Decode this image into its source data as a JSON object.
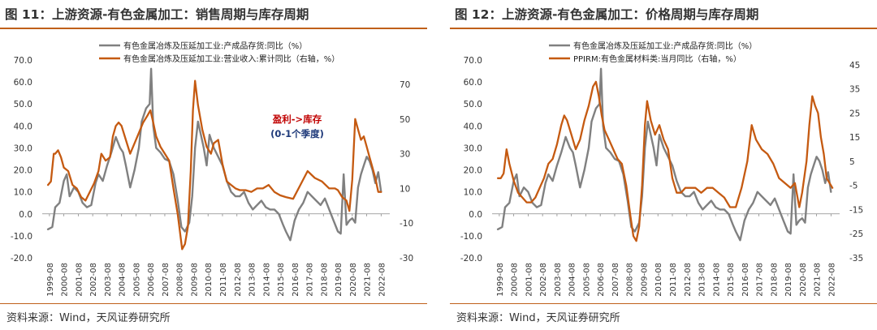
{
  "charts": [
    {
      "figure_title": "图 11：上游资源-有色金属加工：销售周期与库存周期",
      "source": "资料来源：Wind，天风证券研究所",
      "chart_data": {
        "type": "line",
        "x_ticks": [
          "1999-08",
          "2000-08",
          "2001-08",
          "2002-08",
          "2003-08",
          "2004-08",
          "2005-08",
          "2006-08",
          "2007-08",
          "2008-08",
          "2009-08",
          "2010-08",
          "2011-08",
          "2012-08",
          "2013-08",
          "2014-08",
          "2015-08",
          "2016-08",
          "2017-08",
          "2018-08",
          "2019-08",
          "2020-08",
          "2021-08",
          "2022-08"
        ],
        "left_axis": {
          "ylim": [
            -20,
            70
          ],
          "ticks": [
            "-20.0",
            "-10.0",
            "0.0",
            "10.0",
            "20.0",
            "30.0",
            "40.0",
            "50.0",
            "60.0",
            "70.0"
          ]
        },
        "right_axis": {
          "ylim": [
            -30,
            84
          ],
          "ticks": [
            "-30",
            "-10",
            "10",
            "30",
            "50",
            "70"
          ]
        },
        "legend_position": "top-center",
        "annotations": [
          {
            "text": "盈利->库存",
            "color": "#c00000"
          },
          {
            "text": "(0-1个季度)",
            "color": "#1f3a7a"
          }
        ],
        "series": [
          {
            "name": "有色金属冶炼及压延加工业:产成品存货:同比（%）",
            "axis": "left",
            "color": "#808080",
            "x": [
              1999.5,
              1999.8,
              2000.0,
              2000.3,
              2000.6,
              2000.8,
              2001.0,
              2001.3,
              2001.6,
              2001.9,
              2002.2,
              2002.5,
              2002.8,
              2003.0,
              2003.3,
              2003.6,
              2003.9,
              2004.2,
              2004.5,
              2004.7,
              2004.9,
              2005.2,
              2005.5,
              2005.8,
              2006.0,
              2006.3,
              2006.55,
              2006.65,
              2006.8,
              2007.0,
              2007.3,
              2007.6,
              2007.9,
              2008.2,
              2008.5,
              2008.75,
              2009.0,
              2009.3,
              2009.5,
              2009.7,
              2009.9,
              2010.1,
              2010.3,
              2010.5,
              2010.7,
              2011.0,
              2011.3,
              2011.6,
              2011.9,
              2012.2,
              2012.5,
              2012.8,
              2013.1,
              2013.4,
              2013.7,
              2014.0,
              2014.3,
              2014.6,
              2014.9,
              2015.2,
              2015.5,
              2015.8,
              2016.0,
              2016.3,
              2016.6,
              2016.9,
              2017.2,
              2017.5,
              2017.8,
              2018.1,
              2018.4,
              2018.7,
              2019.0,
              2019.3,
              2019.6,
              2019.8,
              2020.0,
              2020.2,
              2020.4,
              2020.6,
              2020.8,
              2021.0,
              2021.2,
              2021.4,
              2021.6,
              2021.8,
              2022.0,
              2022.2,
              2022.4,
              2022.6
            ],
            "values": [
              -7,
              -6,
              3,
              5,
              15,
              18,
              8,
              12,
              10,
              5,
              3,
              4,
              14,
              18,
              15,
              22,
              28,
              35,
              30,
              28,
              22,
              12,
              20,
              30,
              42,
              48,
              50,
              66,
              40,
              30,
              28,
              25,
              24,
              18,
              6,
              -6,
              -8,
              -4,
              8,
              30,
              42,
              36,
              30,
              22,
              36,
              30,
              26,
              22,
              15,
              10,
              8,
              8,
              10,
              5,
              2,
              4,
              6,
              3,
              2,
              2,
              0,
              -5,
              -8,
              -12,
              -3,
              2,
              5,
              10,
              8,
              6,
              4,
              7,
              2,
              -3,
              -8,
              -9,
              18,
              -5,
              -3,
              -2,
              -4,
              12,
              18,
              22,
              26,
              24,
              20,
              14,
              19,
              10
            ]
          },
          {
            "name": "有色金属冶炼及压延加工业:营业收入:累计同比（右轴，%）",
            "axis": "right",
            "color": "#c55a11",
            "x": [
              1999.5,
              1999.7,
              1999.9,
              2000.0,
              2000.2,
              2000.4,
              2000.6,
              2000.9,
              2001.2,
              2001.5,
              2001.8,
              2002.1,
              2002.4,
              2002.7,
              2003.0,
              2003.2,
              2003.5,
              2003.8,
              2004.0,
              2004.2,
              2004.4,
              2004.6,
              2004.9,
              2005.2,
              2005.5,
              2005.8,
              2006.1,
              2006.4,
              2006.6,
              2006.8,
              2007.0,
              2007.3,
              2007.6,
              2007.9,
              2008.2,
              2008.5,
              2008.8,
              2009.0,
              2009.2,
              2009.4,
              2009.55,
              2009.7,
              2009.9,
              2010.2,
              2010.5,
              2010.8,
              2011.0,
              2011.3,
              2011.6,
              2011.9,
              2012.2,
              2012.5,
              2012.8,
              2013.2,
              2013.6,
              2014.0,
              2014.4,
              2014.8,
              2015.2,
              2015.6,
              2016.0,
              2016.5,
              2017.0,
              2017.5,
              2018.0,
              2018.5,
              2019.0,
              2019.4,
              2019.6,
              2019.9,
              2020.2,
              2020.4,
              2020.6,
              2020.8,
              2021.0,
              2021.2,
              2021.4,
              2021.6,
              2021.8,
              2022.0,
              2022.2,
              2022.4,
              2022.6
            ],
            "values": [
              12,
              14,
              30,
              30,
              32,
              28,
              22,
              20,
              12,
              10,
              5,
              3,
              8,
              13,
              20,
              30,
              26,
              28,
              40,
              46,
              48,
              46,
              38,
              30,
              36,
              42,
              48,
              52,
              55,
              48,
              40,
              34,
              30,
              26,
              10,
              -5,
              -25,
              -22,
              -12,
              20,
              55,
              72,
              58,
              44,
              34,
              30,
              36,
              38,
              24,
              14,
              12,
              10,
              9,
              9,
              8,
              10,
              10,
              12,
              8,
              6,
              5,
              4,
              12,
              20,
              16,
              14,
              10,
              10,
              9,
              5,
              3,
              -3,
              15,
              50,
              44,
              38,
              40,
              34,
              28,
              22,
              16,
              8,
              8
            ]
          }
        ]
      }
    },
    {
      "figure_title": "图 12：上游资源-有色金属加工：价格周期与库存周期",
      "source": "资料来源：Wind，天风证券研究所",
      "chart_data": {
        "type": "line",
        "x_ticks": [
          "1999-08",
          "2000-08",
          "2001-08",
          "2002-08",
          "2003-08",
          "2004-08",
          "2005-08",
          "2006-08",
          "2007-08",
          "2008-08",
          "2009-08",
          "2010-08",
          "2011-08",
          "2012-08",
          "2013-08",
          "2014-08",
          "2015-08",
          "2016-08",
          "2017-08",
          "2018-08",
          "2019-08",
          "2020-08",
          "2021-08",
          "2022-08"
        ],
        "left_axis": {
          "ylim": [
            -20,
            70
          ],
          "ticks": [
            "-20.0",
            "-10.0",
            "0.0",
            "10.0",
            "20.0",
            "30.0",
            "40.0",
            "50.0",
            "60.0",
            "70.0"
          ]
        },
        "right_axis": {
          "ylim": [
            -35,
            47
          ],
          "ticks": [
            "-35",
            "-25",
            "-15",
            "-5",
            "5",
            "15",
            "25",
            "35",
            "45"
          ]
        },
        "legend_position": "top-center",
        "series": [
          {
            "name": "有色金属冶炼及压延加工业:产成品存货:同比（%）",
            "axis": "left",
            "color": "#808080",
            "x": [
              1999.5,
              1999.8,
              2000.0,
              2000.3,
              2000.6,
              2000.8,
              2001.0,
              2001.3,
              2001.6,
              2001.9,
              2002.2,
              2002.5,
              2002.8,
              2003.0,
              2003.3,
              2003.6,
              2003.9,
              2004.2,
              2004.5,
              2004.7,
              2004.9,
              2005.2,
              2005.5,
              2005.8,
              2006.0,
              2006.3,
              2006.55,
              2006.65,
              2006.8,
              2007.0,
              2007.3,
              2007.6,
              2007.9,
              2008.2,
              2008.5,
              2008.75,
              2009.0,
              2009.3,
              2009.5,
              2009.7,
              2009.9,
              2010.1,
              2010.3,
              2010.5,
              2010.7,
              2011.0,
              2011.3,
              2011.6,
              2011.9,
              2012.2,
              2012.5,
              2012.8,
              2013.1,
              2013.4,
              2013.7,
              2014.0,
              2014.3,
              2014.6,
              2014.9,
              2015.2,
              2015.5,
              2015.8,
              2016.0,
              2016.3,
              2016.6,
              2016.9,
              2017.2,
              2017.5,
              2017.8,
              2018.1,
              2018.4,
              2018.7,
              2019.0,
              2019.3,
              2019.6,
              2019.8,
              2020.0,
              2020.2,
              2020.4,
              2020.6,
              2020.8,
              2021.0,
              2021.2,
              2021.4,
              2021.6,
              2021.8,
              2022.0,
              2022.2,
              2022.4,
              2022.6
            ],
            "values": [
              -7,
              -6,
              3,
              5,
              15,
              18,
              8,
              12,
              10,
              5,
              3,
              4,
              14,
              18,
              15,
              22,
              28,
              35,
              30,
              28,
              22,
              12,
              20,
              30,
              42,
              48,
              50,
              66,
              40,
              30,
              28,
              25,
              24,
              18,
              6,
              -6,
              -8,
              -4,
              8,
              30,
              42,
              36,
              30,
              22,
              36,
              30,
              26,
              22,
              15,
              10,
              8,
              8,
              10,
              5,
              2,
              4,
              6,
              3,
              2,
              2,
              0,
              -5,
              -8,
              -12,
              -3,
              2,
              5,
              10,
              8,
              6,
              4,
              7,
              2,
              -3,
              -8,
              -9,
              18,
              -5,
              -3,
              -2,
              -4,
              12,
              18,
              22,
              26,
              24,
              20,
              14,
              19,
              10
            ]
          },
          {
            "name": "PPIRM:有色金属材料类:当月同比（右轴，%）",
            "axis": "right",
            "color": "#c55a11",
            "x": [
              1999.5,
              1999.7,
              1999.9,
              2000.1,
              2000.3,
              2000.6,
              2000.9,
              2001.2,
              2001.5,
              2001.8,
              2002.1,
              2002.4,
              2002.7,
              2003.0,
              2003.3,
              2003.6,
              2003.9,
              2004.1,
              2004.3,
              2004.6,
              2004.9,
              2005.2,
              2005.5,
              2005.8,
              2006.1,
              2006.3,
              2006.5,
              2006.7,
              2006.9,
              2007.2,
              2007.5,
              2007.8,
              2008.1,
              2008.4,
              2008.7,
              2008.9,
              2009.1,
              2009.3,
              2009.5,
              2009.7,
              2009.85,
              2010.1,
              2010.4,
              2010.7,
              2011.0,
              2011.3,
              2011.6,
              2011.9,
              2012.2,
              2012.5,
              2012.8,
              2013.2,
              2013.6,
              2014.0,
              2014.4,
              2014.8,
              2015.2,
              2015.6,
              2016.0,
              2016.4,
              2016.8,
              2017.1,
              2017.4,
              2017.8,
              2018.2,
              2018.6,
              2019.0,
              2019.4,
              2019.8,
              2020.1,
              2020.4,
              2020.6,
              2020.9,
              2021.1,
              2021.3,
              2021.5,
              2021.7,
              2021.9,
              2022.1,
              2022.3,
              2022.5,
              2022.7
            ],
            "values": [
              -2,
              -2,
              0,
              10,
              4,
              -3,
              -8,
              -10,
              -12,
              -12,
              -10,
              -6,
              -2,
              4,
              6,
              12,
              20,
              24,
              22,
              16,
              10,
              14,
              22,
              28,
              36,
              38,
              32,
              24,
              18,
              14,
              10,
              6,
              4,
              -5,
              -18,
              -26,
              -28,
              -22,
              -5,
              20,
              30,
              22,
              16,
              20,
              14,
              10,
              -2,
              -8,
              -8,
              -6,
              -6,
              -6,
              -8,
              -6,
              -6,
              -8,
              -10,
              -14,
              -14,
              -6,
              5,
              20,
              14,
              10,
              8,
              4,
              -2,
              -4,
              -6,
              -4,
              -14,
              -8,
              5,
              20,
              32,
              28,
              25,
              15,
              8,
              -2,
              -4,
              -6
            ]
          }
        ]
      }
    }
  ]
}
